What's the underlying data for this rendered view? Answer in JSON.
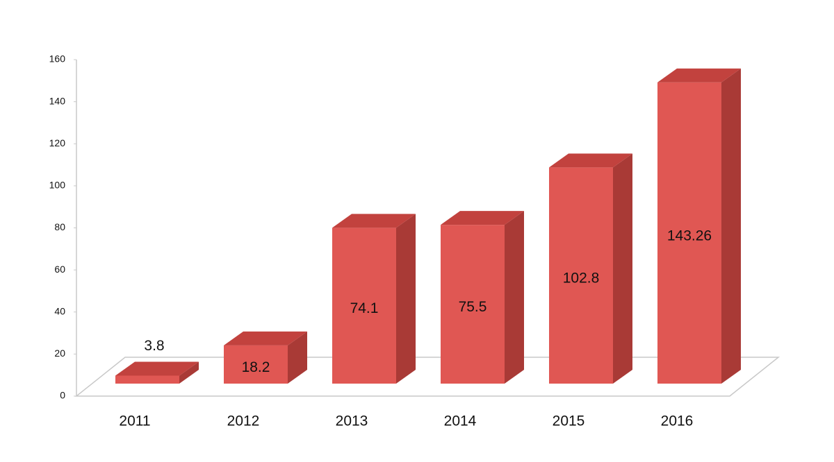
{
  "chart_data": {
    "type": "bar",
    "categories": [
      "2011",
      "2012",
      "2013",
      "2014",
      "2015",
      "2016"
    ],
    "values": [
      3.8,
      18.2,
      74.1,
      75.5,
      102.8,
      143.26
    ],
    "color": "#e05753",
    "ylim": [
      0,
      160
    ],
    "yticks": [
      0,
      20,
      40,
      60,
      80,
      100,
      120,
      140,
      160
    ]
  }
}
